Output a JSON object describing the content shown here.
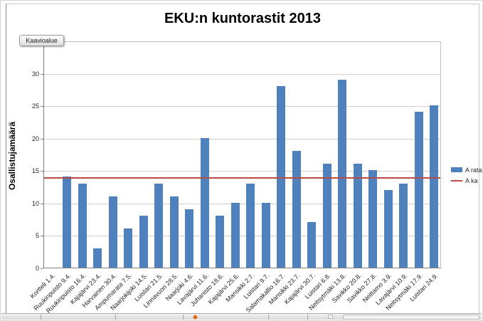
{
  "chart_tooltip": {
    "label": "Kaavioalue"
  },
  "chart_data": {
    "type": "bar",
    "title": "EKU:n kuntorastit 2013",
    "ylabel": "Osallistujamäärä",
    "xlabel": "",
    "ylim": [
      0,
      35
    ],
    "yticks": [
      0,
      5,
      10,
      15,
      20,
      25,
      30
    ],
    "grid": true,
    "legend_position": "right",
    "categories": [
      "Kortteli 1.4.",
      "Ruukinpuisto 9.4.",
      "Ruukinpuisto 16.4.",
      "Kajajärvi 23.4.",
      "Harvainen 30.4.",
      "Ampumarata 7.5.",
      "Naarjokijoki 14.5.",
      "Luistari 21.5.",
      "Linnavuori 28.5.",
      "Naarjoki 4.6.",
      "Lavajärvi 11.6.",
      "Juhanisto 18.6.",
      "Kajajärvi 25.6.",
      "Mansikki 2.7.",
      "Luistari 9.7.",
      "Salamakallio 16.7.",
      "Mansikki 23.7.",
      "Kajajärvi 30.7.",
      "Luistari 6.8.",
      "Neitsytmäki 13.8.",
      "Savikko 20.8.",
      "Savikko 27.8.",
      "Neittamo 3.9.",
      "Lavajärvi 10.9.",
      "Neitsytmäki 17.9.",
      "Luistari 24.9."
    ],
    "series": [
      {
        "name": "A rata",
        "type": "bar",
        "color": "#4f81bd",
        "values": [
          null,
          14,
          13,
          3,
          11,
          6,
          8,
          13,
          11,
          9,
          20,
          8,
          10,
          13,
          10,
          28,
          18,
          7,
          16,
          29,
          16,
          15,
          12,
          13,
          24,
          25
        ]
      },
      {
        "name": "A ka",
        "type": "line",
        "color": "#b94a47",
        "value": 14.08
      }
    ]
  }
}
